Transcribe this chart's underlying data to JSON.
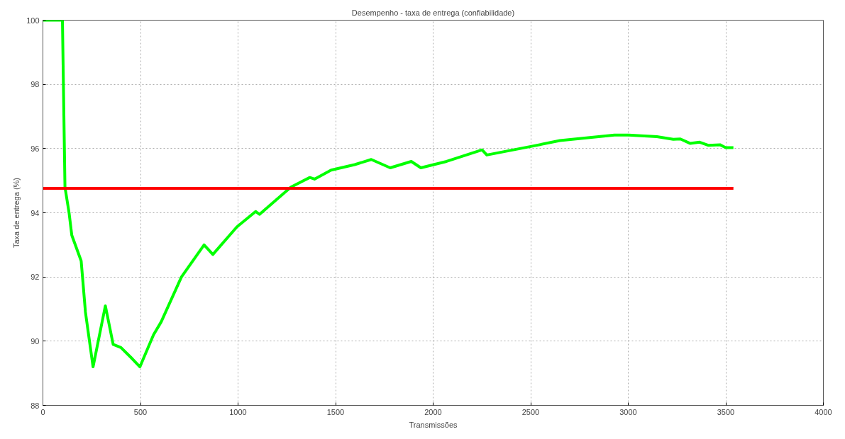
{
  "chart_data": {
    "type": "line",
    "title": "Desempenho - taxa de entrega (confiabilidade)",
    "xlabel": "Transmissões",
    "ylabel": "Taxa de entrega (%)",
    "xlim": [
      0,
      4000
    ],
    "ylim": [
      88,
      100
    ],
    "xticks": [
      0,
      500,
      1000,
      1500,
      2000,
      2500,
      3000,
      3500,
      4000
    ],
    "yticks": [
      88,
      90,
      92,
      94,
      96,
      98,
      100
    ],
    "grid": true,
    "series": [
      {
        "color": "#00ff00",
        "x": [
          0,
          100,
          113,
          134,
          148,
          196,
          218,
          257,
          320,
          360,
          400,
          450,
          497,
          567,
          606,
          710,
          826,
          871,
          994,
          1090,
          1110,
          1271,
          1368,
          1392,
          1477,
          1598,
          1683,
          1780,
          1888,
          1937,
          2069,
          2251,
          2275,
          2505,
          2650,
          2929,
          3002,
          3147,
          3231,
          3267,
          3318,
          3366,
          3412,
          3470,
          3499,
          3539
        ],
        "values": [
          100,
          100,
          94.8,
          94.0,
          93.3,
          92.5,
          90.9,
          89.2,
          91.1,
          89.9,
          89.8,
          89.5,
          89.2,
          90.2,
          90.6,
          92.0,
          93.0,
          92.7,
          93.56,
          94.04,
          93.95,
          94.8,
          95.1,
          95.05,
          95.33,
          95.5,
          95.66,
          95.4,
          95.6,
          95.4,
          95.6,
          95.96,
          95.8,
          96.07,
          96.25,
          96.42,
          96.42,
          96.37,
          96.29,
          96.3,
          96.16,
          96.2,
          96.1,
          96.12,
          96.03,
          96.03
        ]
      },
      {
        "color": "#ff0000",
        "x": [
          0,
          3539
        ],
        "values": [
          94.76,
          94.76
        ]
      }
    ]
  }
}
